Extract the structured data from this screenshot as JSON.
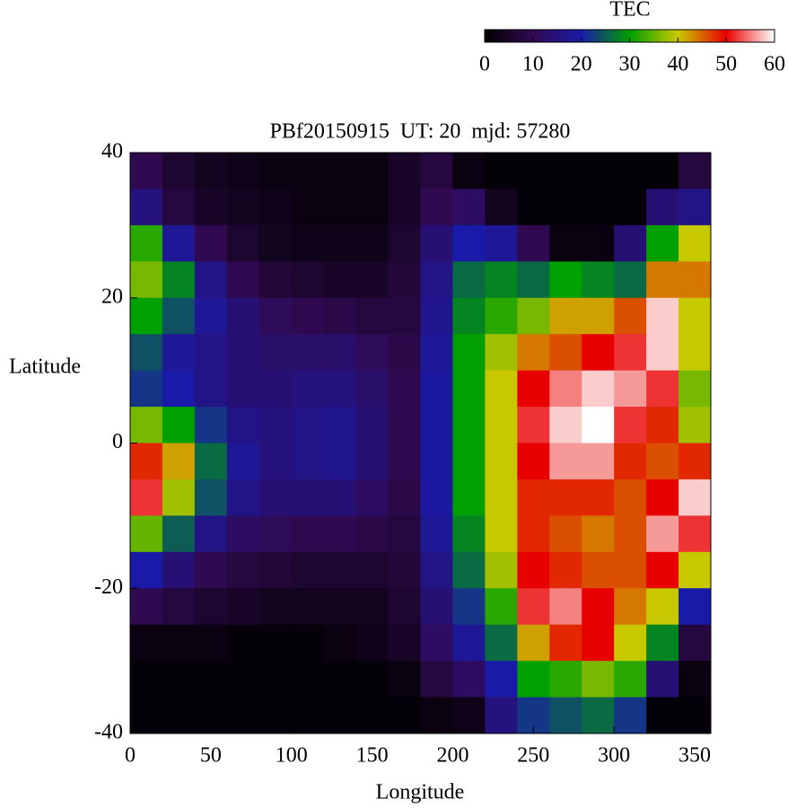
{
  "chart_data": {
    "type": "heatmap",
    "title": "PBf20150915  UT: 20  mjd: 57280",
    "xlabel": "Longitude",
    "ylabel": "Latitude",
    "x": [
      10,
      30,
      50,
      70,
      90,
      110,
      130,
      150,
      170,
      190,
      210,
      230,
      250,
      270,
      290,
      310,
      330,
      350
    ],
    "y": [
      37.5,
      32.5,
      27.5,
      22.5,
      17.5,
      12.5,
      7.5,
      2.5,
      -2.5,
      -7.5,
      -12.5,
      -17.5,
      -22.5,
      -27.5,
      -32.5,
      -37.5
    ],
    "values": [
      [
        10,
        6,
        4,
        3,
        2,
        2,
        2,
        2,
        5,
        8,
        2,
        1,
        1,
        1,
        1,
        1,
        1,
        8
      ],
      [
        15,
        8,
        5,
        4,
        3,
        2,
        2,
        2,
        5,
        10,
        12,
        4,
        1,
        1,
        1,
        1,
        14,
        16
      ],
      [
        32,
        18,
        10,
        6,
        4,
        3,
        3,
        3,
        6,
        14,
        20,
        18,
        10,
        2,
        2,
        14,
        30,
        40
      ],
      [
        36,
        28,
        16,
        10,
        7,
        6,
        5,
        5,
        7,
        16,
        26,
        28,
        26,
        30,
        28,
        26,
        44,
        44
      ],
      [
        30,
        24,
        18,
        14,
        11,
        10,
        9,
        8,
        8,
        17,
        28,
        32,
        36,
        42,
        42,
        46,
        58,
        40
      ],
      [
        24,
        18,
        16,
        14,
        13,
        13,
        13,
        11,
        9,
        18,
        30,
        38,
        44,
        46,
        50,
        52,
        58,
        40
      ],
      [
        22,
        20,
        16,
        14,
        14,
        15,
        15,
        13,
        10,
        19,
        30,
        40,
        50,
        55,
        58,
        56,
        52,
        36
      ],
      [
        36,
        30,
        22,
        16,
        15,
        16,
        17,
        14,
        10,
        19,
        30,
        40,
        52,
        58,
        60,
        52,
        48,
        38
      ],
      [
        48,
        42,
        26,
        18,
        15,
        16,
        17,
        14,
        10,
        19,
        30,
        40,
        50,
        56,
        56,
        48,
        46,
        48
      ],
      [
        52,
        38,
        24,
        16,
        14,
        14,
        14,
        12,
        9,
        19,
        30,
        40,
        48,
        48,
        48,
        46,
        50,
        58
      ],
      [
        35,
        25,
        16,
        12,
        11,
        10,
        10,
        9,
        8,
        18,
        28,
        40,
        48,
        46,
        44,
        46,
        56,
        52
      ],
      [
        20,
        14,
        10,
        8,
        7,
        6,
        6,
        6,
        7,
        16,
        26,
        38,
        50,
        48,
        46,
        46,
        50,
        40
      ],
      [
        10,
        8,
        6,
        5,
        4,
        4,
        4,
        4,
        6,
        14,
        22,
        32,
        52,
        55,
        50,
        44,
        40,
        20
      ],
      [
        2,
        2,
        2,
        1,
        1,
        1,
        2,
        3,
        5,
        12,
        18,
        26,
        42,
        48,
        50,
        40,
        28,
        8
      ],
      [
        1,
        1,
        1,
        1,
        1,
        1,
        1,
        1,
        2,
        8,
        12,
        20,
        30,
        32,
        36,
        32,
        14,
        2
      ],
      [
        1,
        1,
        1,
        1,
        1,
        1,
        1,
        1,
        1,
        2,
        3,
        15,
        22,
        24,
        26,
        22,
        1,
        1
      ]
    ],
    "xlim": [
      0,
      360
    ],
    "ylim": [
      -40,
      40
    ],
    "xticks": [
      0,
      50,
      100,
      150,
      200,
      250,
      300,
      350
    ],
    "yticks": [
      -40,
      -20,
      0,
      20,
      40
    ],
    "colorbar_title": "TEC",
    "clim": [
      0,
      60
    ],
    "cticks": [
      0,
      10,
      20,
      30,
      40,
      50,
      60
    ],
    "colors": [
      "#000000",
      "#300a50",
      "#1a1aa8",
      "#00a000",
      "#c8c800",
      "#e80000",
      "#ffffff"
    ]
  }
}
